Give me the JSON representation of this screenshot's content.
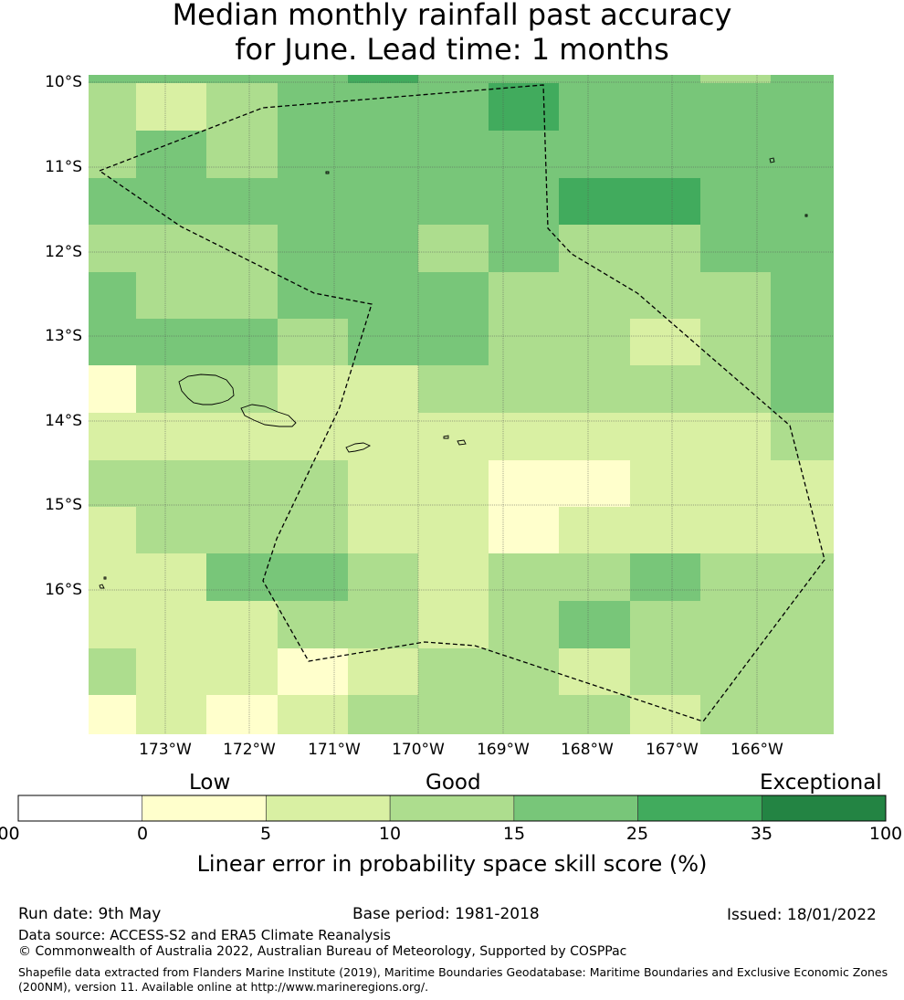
{
  "title_line1": "Median monthly rainfall past accuracy",
  "title_line2": "for June. Lead time: 1 months",
  "map": {
    "lat_labels": [
      "10°S",
      "11°S",
      "12°S",
      "13°S",
      "14°S",
      "15°S",
      "16°S"
    ],
    "lon_labels": [
      "173°W",
      "172°W",
      "171°W",
      "170°W",
      "169°W",
      "168°W",
      "167°W",
      "166°W"
    ],
    "grid_cells": [
      [
        4,
        4,
        4,
        4,
        4,
        5,
        4,
        4,
        4,
        4,
        3,
        4
      ],
      [
        3,
        3,
        2,
        3,
        4,
        4,
        4,
        5,
        4,
        4,
        4,
        4
      ],
      [
        3,
        3,
        4,
        3,
        4,
        4,
        4,
        4,
        4,
        4,
        4,
        4
      ],
      [
        4,
        4,
        4,
        4,
        4,
        4,
        4,
        4,
        5,
        5,
        4,
        4
      ],
      [
        4,
        3,
        3,
        3,
        4,
        4,
        3,
        4,
        3,
        3,
        4,
        4
      ],
      [
        3,
        4,
        3,
        3,
        4,
        4,
        4,
        3,
        3,
        3,
        3,
        4
      ],
      [
        4,
        4,
        4,
        4,
        3,
        4,
        4,
        3,
        3,
        2,
        3,
        4
      ],
      [
        4,
        1,
        3,
        3,
        2,
        2,
        3,
        3,
        3,
        3,
        3,
        4
      ],
      [
        3,
        2,
        2,
        2,
        2,
        2,
        2,
        2,
        2,
        2,
        2,
        3
      ],
      [
        3,
        3,
        3,
        3,
        3,
        2,
        2,
        1,
        1,
        2,
        2,
        2
      ],
      [
        3,
        2,
        3,
        3,
        3,
        2,
        2,
        1,
        2,
        2,
        2,
        2
      ],
      [
        1,
        2,
        2,
        4,
        4,
        3,
        2,
        3,
        3,
        4,
        3,
        3
      ],
      [
        2,
        2,
        2,
        2,
        3,
        3,
        2,
        3,
        4,
        3,
        3,
        3
      ],
      [
        2,
        3,
        2,
        2,
        1,
        2,
        3,
        3,
        2,
        3,
        3,
        3
      ],
      [
        3,
        1,
        2,
        1,
        2,
        3,
        3,
        3,
        3,
        2,
        3,
        3
      ]
    ]
  },
  "colorbar": {
    "categories": [
      "Low",
      "Good",
      "Exceptional"
    ],
    "ticks": [
      "-100",
      "0",
      "5",
      "10",
      "15",
      "25",
      "35",
      "100"
    ],
    "colors": [
      "#ffffff",
      "#ffffcc",
      "#d9f0a3",
      "#addd8e",
      "#78c679",
      "#41ab5d",
      "#238443"
    ],
    "label": "Linear error in probability space skill score (%)"
  },
  "footer": {
    "run_date": "Run date: 9th May",
    "base_period": "Base period: 1981-2018",
    "issued": "Issued: 18/01/2022",
    "data_source": "Data source: ACCESS-S2 and ERA5 Climate Reanalysis",
    "copyright": "© Commonwealth of Australia 2022, Australian Bureau of Meteorology, Supported by COSPPac",
    "shapefile_line1": "Shapefile data extracted from Flanders Marine Institute (2019), Maritime Boundaries Geodatabase: Maritime Boundaries and Exclusive Economic Zones",
    "shapefile_line2": "(200NM), version 11. Available online at http://www.marineregions.org/."
  }
}
